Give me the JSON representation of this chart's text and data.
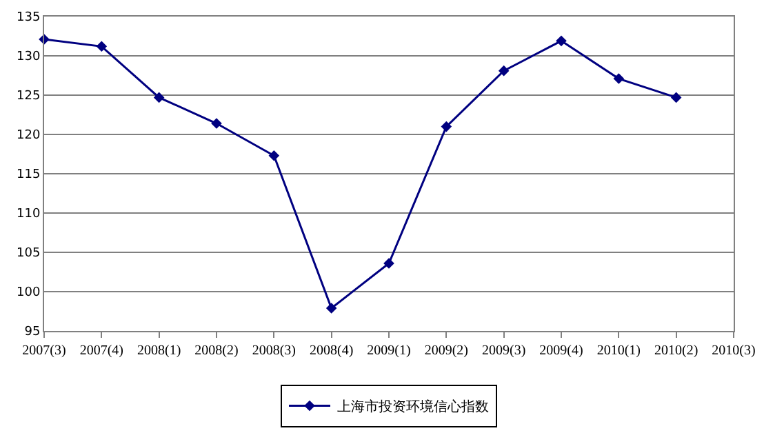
{
  "chart_data": {
    "type": "line",
    "categories": [
      "2007(3)",
      "2007(4)",
      "2008(1)",
      "2008(2)",
      "2008(3)",
      "2008(4)",
      "2009(1)",
      "2009(2)",
      "2009(3)",
      "2009(4)",
      "2010(1)",
      "2010(2)",
      "2010(3)"
    ],
    "series": [
      {
        "name": "上海市投资环境信心指数",
        "color": "#000080",
        "values": [
          132.1,
          131.2,
          124.7,
          121.4,
          117.3,
          97.9,
          103.6,
          121.0,
          128.1,
          131.9,
          127.1,
          124.7,
          null
        ]
      }
    ],
    "ylim": [
      95,
      135
    ],
    "yticks": [
      95,
      100,
      105,
      110,
      115,
      120,
      125,
      130,
      135
    ],
    "grid": "y",
    "legend": "bottom",
    "marker": "diamond",
    "line_style": "solid"
  }
}
